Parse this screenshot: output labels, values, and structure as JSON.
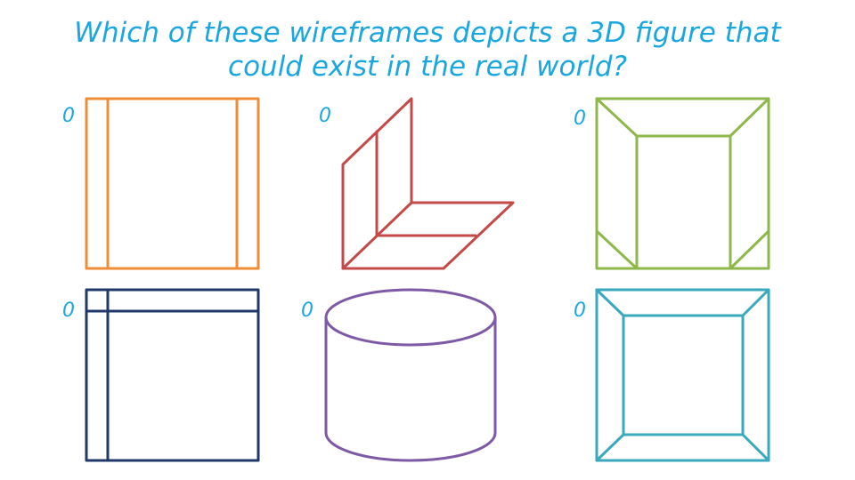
{
  "question": {
    "line1": "Which of these wireframes depicts a 3D figure that",
    "line2": "could exist in the real world?"
  },
  "options": [
    {
      "id": "orange-box",
      "vote": "0",
      "color": "#ef8c35"
    },
    {
      "id": "red-l-shape",
      "vote": "0",
      "color": "#c44a48"
    },
    {
      "id": "green-frustum",
      "vote": "0",
      "color": "#8fb84b"
    },
    {
      "id": "navy-box",
      "vote": "0",
      "color": "#1f3a68"
    },
    {
      "id": "purple-cylinder",
      "vote": "0",
      "color": "#7e5aa6"
    },
    {
      "id": "teal-frame",
      "vote": "0",
      "color": "#3aa9bd"
    }
  ],
  "colors": {
    "text": "#1aa6df"
  }
}
